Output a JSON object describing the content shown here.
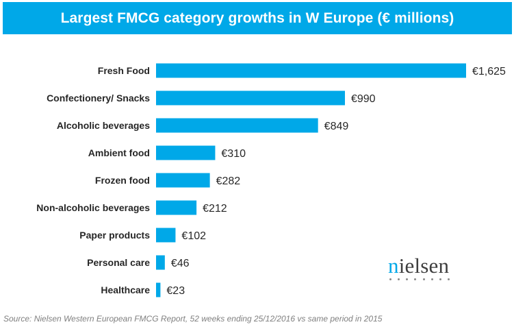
{
  "title": "Largest FMCG category growths in W Europe (€ millions)",
  "source": "Source: Nielsen Western European FMCG Report, 52 weeks ending 25/12/2016 vs same period in 2015",
  "logo": {
    "text_accent": "n",
    "text_rest": "ielsen"
  },
  "colors": {
    "bar": "#00A8E8",
    "title_bg": "#00A8E8",
    "text": "#262626",
    "source_text": "#7f7f7f"
  },
  "chart_data": {
    "type": "bar",
    "orientation": "horizontal",
    "title": "Largest FMCG category growths in W Europe (€ millions)",
    "categories": [
      "Fresh Food",
      "Confectionery/ Snacks",
      "Alcoholic beverages",
      "Ambient food",
      "Frozen food",
      "Non-alcoholic beverages",
      "Paper products",
      "Personal care",
      "Healthcare"
    ],
    "values": [
      1625,
      990,
      849,
      310,
      282,
      212,
      102,
      46,
      23
    ],
    "value_labels": [
      "€1,625",
      "€990",
      "€849",
      "€310",
      "€282",
      "€212",
      "€102",
      "€46",
      "€23"
    ],
    "xlim": [
      0,
      1625
    ],
    "xlabel": "",
    "ylabel": "",
    "grid": false,
    "legend": "none"
  }
}
